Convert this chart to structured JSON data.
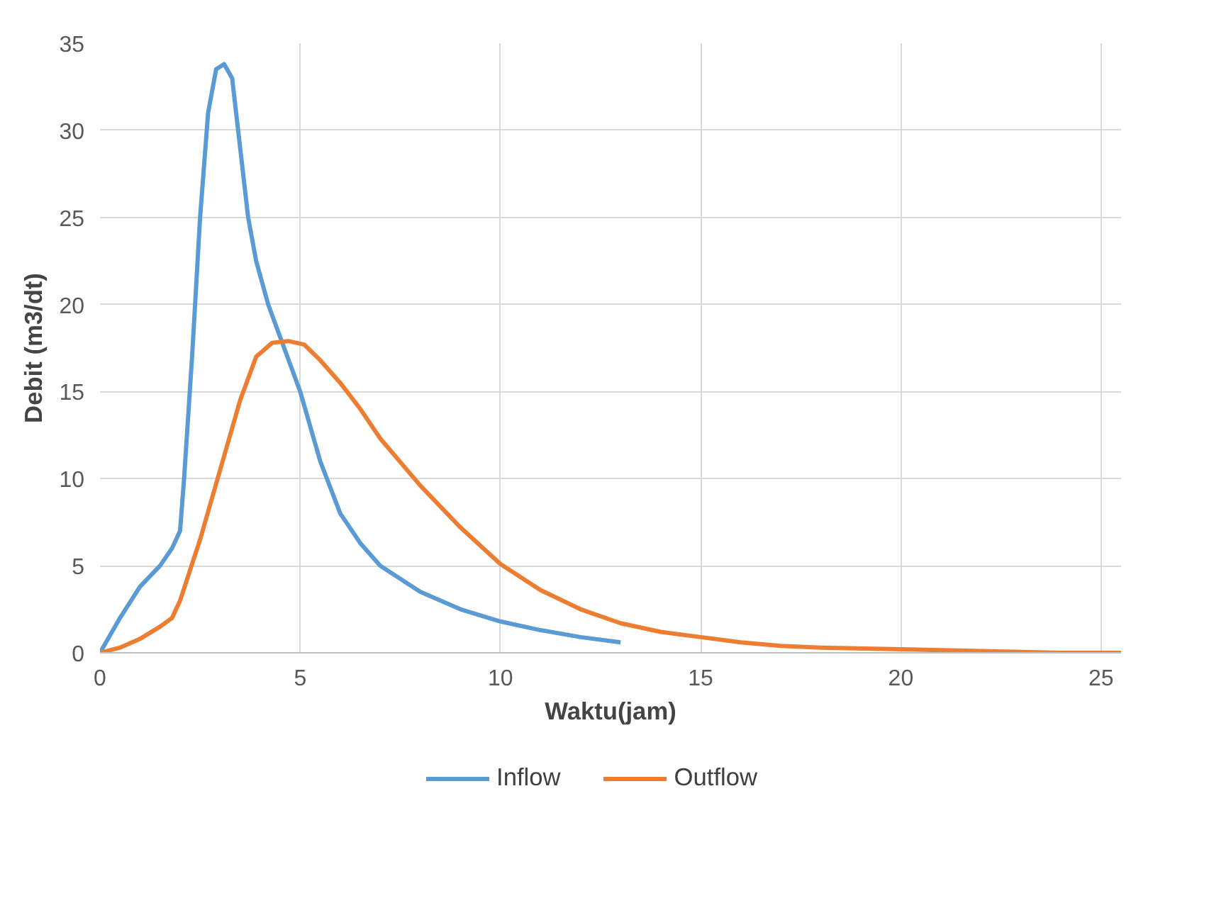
{
  "chart_data": {
    "type": "line",
    "xlabel": "Waktu(jam)",
    "ylabel": "Debit (m3/dt)",
    "xlim": [
      0,
      25.5
    ],
    "xticks": [
      0,
      5,
      10,
      15,
      20,
      25
    ],
    "ylim": [
      0,
      35
    ],
    "yticks": [
      0,
      5,
      10,
      15,
      20,
      25,
      30,
      35
    ],
    "grid": true,
    "legend": "bottom",
    "marker": "none",
    "line_style": "solid",
    "series": [
      {
        "name": "Inflow",
        "color": "#5b9bd5",
        "x": [
          0,
          0.5,
          1,
          1.5,
          1.8,
          2,
          2.1,
          2.3,
          2.5,
          2.7,
          2.9,
          3.1,
          3.3,
          3.5,
          3.7,
          3.9,
          4.2,
          4.6,
          5,
          5.5,
          6,
          6.5,
          7,
          8,
          9,
          10,
          11,
          12,
          13
        ],
        "values": [
          0,
          2,
          3.8,
          5,
          6,
          7,
          10,
          17,
          25,
          31,
          33.5,
          33.8,
          33,
          29,
          25,
          22.5,
          20,
          17.5,
          15,
          11,
          8,
          6.3,
          5,
          3.5,
          2.5,
          1.8,
          1.3,
          0.9,
          0.6
        ]
      },
      {
        "name": "Outflow",
        "color": "#ed7d31",
        "x": [
          0,
          0.5,
          1,
          1.5,
          1.8,
          2,
          2.5,
          3,
          3.5,
          3.9,
          4.3,
          4.7,
          5.1,
          5.5,
          6,
          6.5,
          7,
          8,
          9,
          10,
          11,
          12,
          13,
          14,
          15,
          16,
          17,
          18,
          20,
          22,
          24,
          25.5
        ],
        "values": [
          0,
          0.3,
          0.8,
          1.5,
          2,
          3,
          6.5,
          10.5,
          14.5,
          17,
          17.8,
          17.9,
          17.7,
          16.8,
          15.5,
          14,
          12.3,
          9.6,
          7.2,
          5.1,
          3.6,
          2.5,
          1.7,
          1.2,
          0.9,
          0.6,
          0.4,
          0.3,
          0.2,
          0.1,
          0,
          0
        ]
      }
    ]
  }
}
